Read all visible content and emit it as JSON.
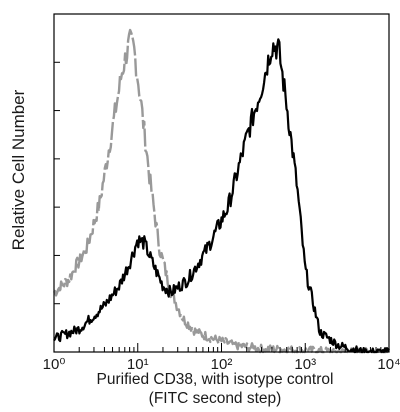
{
  "chart_data": {
    "type": "line",
    "title": "",
    "xlabel": "Purified  CD38,  with isotype control",
    "xlabel_line2": "(FITC second step)",
    "ylabel": "Relative Cell Number",
    "xscale": "log",
    "xlim": [
      1,
      10000
    ],
    "xticks": [
      "10⁰",
      "10¹",
      "10²",
      "10³",
      "10⁴"
    ],
    "grid": false,
    "legend": "none",
    "series": [
      {
        "color": "#999999",
        "style": "line",
        "points": [
          [
            1.0,
            0.18
          ],
          [
            1.5,
            0.22
          ],
          [
            2.5,
            0.32
          ],
          [
            3.5,
            0.45
          ],
          [
            5,
            0.68
          ],
          [
            6.5,
            0.85
          ],
          [
            8,
            0.94
          ],
          [
            9,
            0.92
          ],
          [
            11,
            0.75
          ],
          [
            14,
            0.52
          ],
          [
            18,
            0.32
          ],
          [
            25,
            0.18
          ],
          [
            35,
            0.1
          ],
          [
            50,
            0.06
          ],
          [
            80,
            0.04
          ],
          [
            150,
            0.02
          ],
          [
            300,
            0.01
          ],
          [
            1000,
            0.005
          ],
          [
            3000,
            0.0
          ],
          [
            10000,
            0.0
          ]
        ]
      },
      {
        "color": "#000000",
        "style": "line",
        "points": [
          [
            1.0,
            0.04
          ],
          [
            2,
            0.07
          ],
          [
            4,
            0.14
          ],
          [
            6,
            0.2
          ],
          [
            8,
            0.27
          ],
          [
            10,
            0.34
          ],
          [
            12,
            0.33
          ],
          [
            15,
            0.27
          ],
          [
            20,
            0.2
          ],
          [
            25,
            0.18
          ],
          [
            40,
            0.22
          ],
          [
            70,
            0.32
          ],
          [
            120,
            0.44
          ],
          [
            200,
            0.65
          ],
          [
            300,
            0.8
          ],
          [
            400,
            0.93
          ],
          [
            480,
            0.92
          ],
          [
            600,
            0.75
          ],
          [
            800,
            0.5
          ],
          [
            1000,
            0.25
          ],
          [
            1500,
            0.06
          ],
          [
            2500,
            0.02
          ],
          [
            5000,
            0.0
          ],
          [
            10000,
            0.0
          ]
        ]
      }
    ]
  }
}
